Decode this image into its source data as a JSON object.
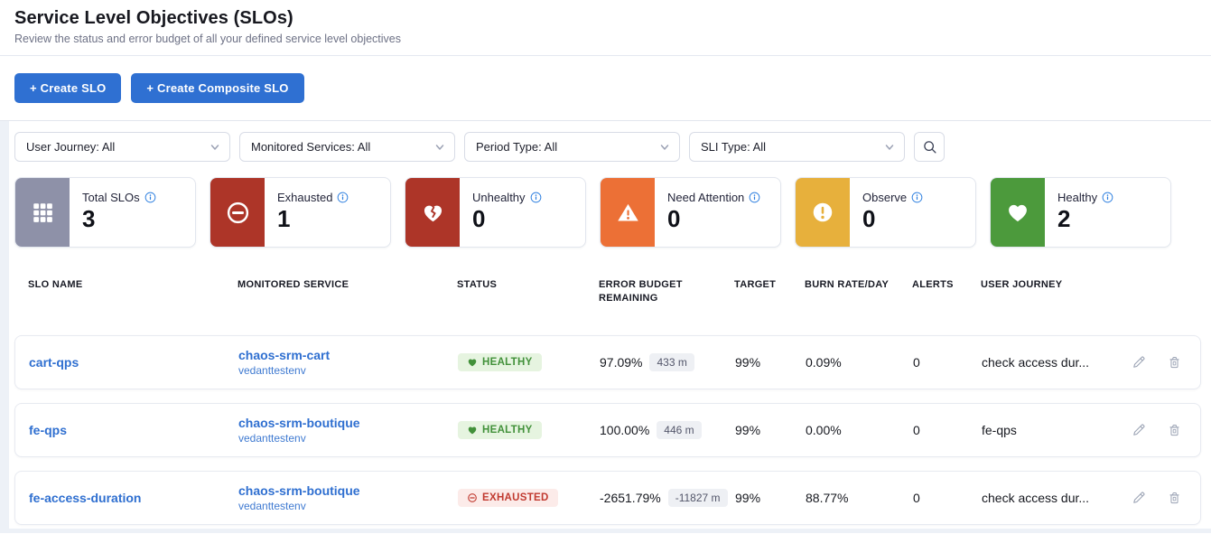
{
  "page": {
    "title": "Service Level Objectives (SLOs)",
    "subtitle": "Review the status and error budget of all your defined service level objectives"
  },
  "toolbar": {
    "create_slo_label": "+ Create SLO",
    "create_composite_label": "+ Create Composite SLO"
  },
  "filters": {
    "selects": [
      {
        "label": "User Journey: All"
      },
      {
        "label": "Monitored Services: All"
      },
      {
        "label": "Period Type: All"
      },
      {
        "label": "SLI Type: All"
      }
    ],
    "search_icon": "search-icon"
  },
  "stats": [
    {
      "label": "Total SLOs",
      "value": "3",
      "icon": "grid-icon",
      "color": "#8e91a8"
    },
    {
      "label": "Exhausted",
      "value": "1",
      "icon": "minus-circle-icon",
      "color": "#ad3528"
    },
    {
      "label": "Unhealthy",
      "value": "0",
      "icon": "broken-heart-icon",
      "color": "#ad3528"
    },
    {
      "label": "Need Attention",
      "value": "0",
      "icon": "warning-triangle-icon",
      "color": "#ec7036"
    },
    {
      "label": "Observe",
      "value": "0",
      "icon": "alert-circle-icon",
      "color": "#e7b03c"
    },
    {
      "label": "Healthy",
      "value": "2",
      "icon": "heart-icon",
      "color": "#4c9a3c"
    }
  ],
  "table": {
    "columns": [
      "SLO NAME",
      "MONITORED SERVICE",
      "STATUS",
      "ERROR BUDGET REMAINING",
      "TARGET",
      "BURN RATE/DAY",
      "ALERTS",
      "USER JOURNEY"
    ],
    "rows": [
      {
        "name": "cart-qps",
        "service": "chaos-srm-cart",
        "env": "vedanttestenv",
        "status_label": "HEALTHY",
        "status_type": "healthy",
        "budget_pct": "97.09%",
        "budget_min": "433 m",
        "target": "99%",
        "burn_rate": "0.09%",
        "alerts": "0",
        "user_journey": "check access dur..."
      },
      {
        "name": "fe-qps",
        "service": "chaos-srm-boutique",
        "env": "vedanttestenv",
        "status_label": "HEALTHY",
        "status_type": "healthy",
        "budget_pct": "100.00%",
        "budget_min": "446 m",
        "target": "99%",
        "burn_rate": "0.00%",
        "alerts": "0",
        "user_journey": "fe-qps"
      },
      {
        "name": "fe-access-duration",
        "service": "chaos-srm-boutique",
        "env": "vedanttestenv",
        "status_label": "EXHAUSTED",
        "status_type": "exhausted",
        "budget_pct": "-2651.79%",
        "budget_min": "-11827 m",
        "target": "99%",
        "burn_rate": "88.77%",
        "alerts": "0",
        "user_journey": "check access dur..."
      }
    ]
  },
  "colors": {
    "primary_blue": "#2f70d2",
    "link_blue": "#2f6fd0",
    "healthy_text": "#42913a",
    "healthy_bg": "#e6f4e0",
    "exhausted_text": "#c13a30",
    "exhausted_bg": "#fcebe9"
  }
}
